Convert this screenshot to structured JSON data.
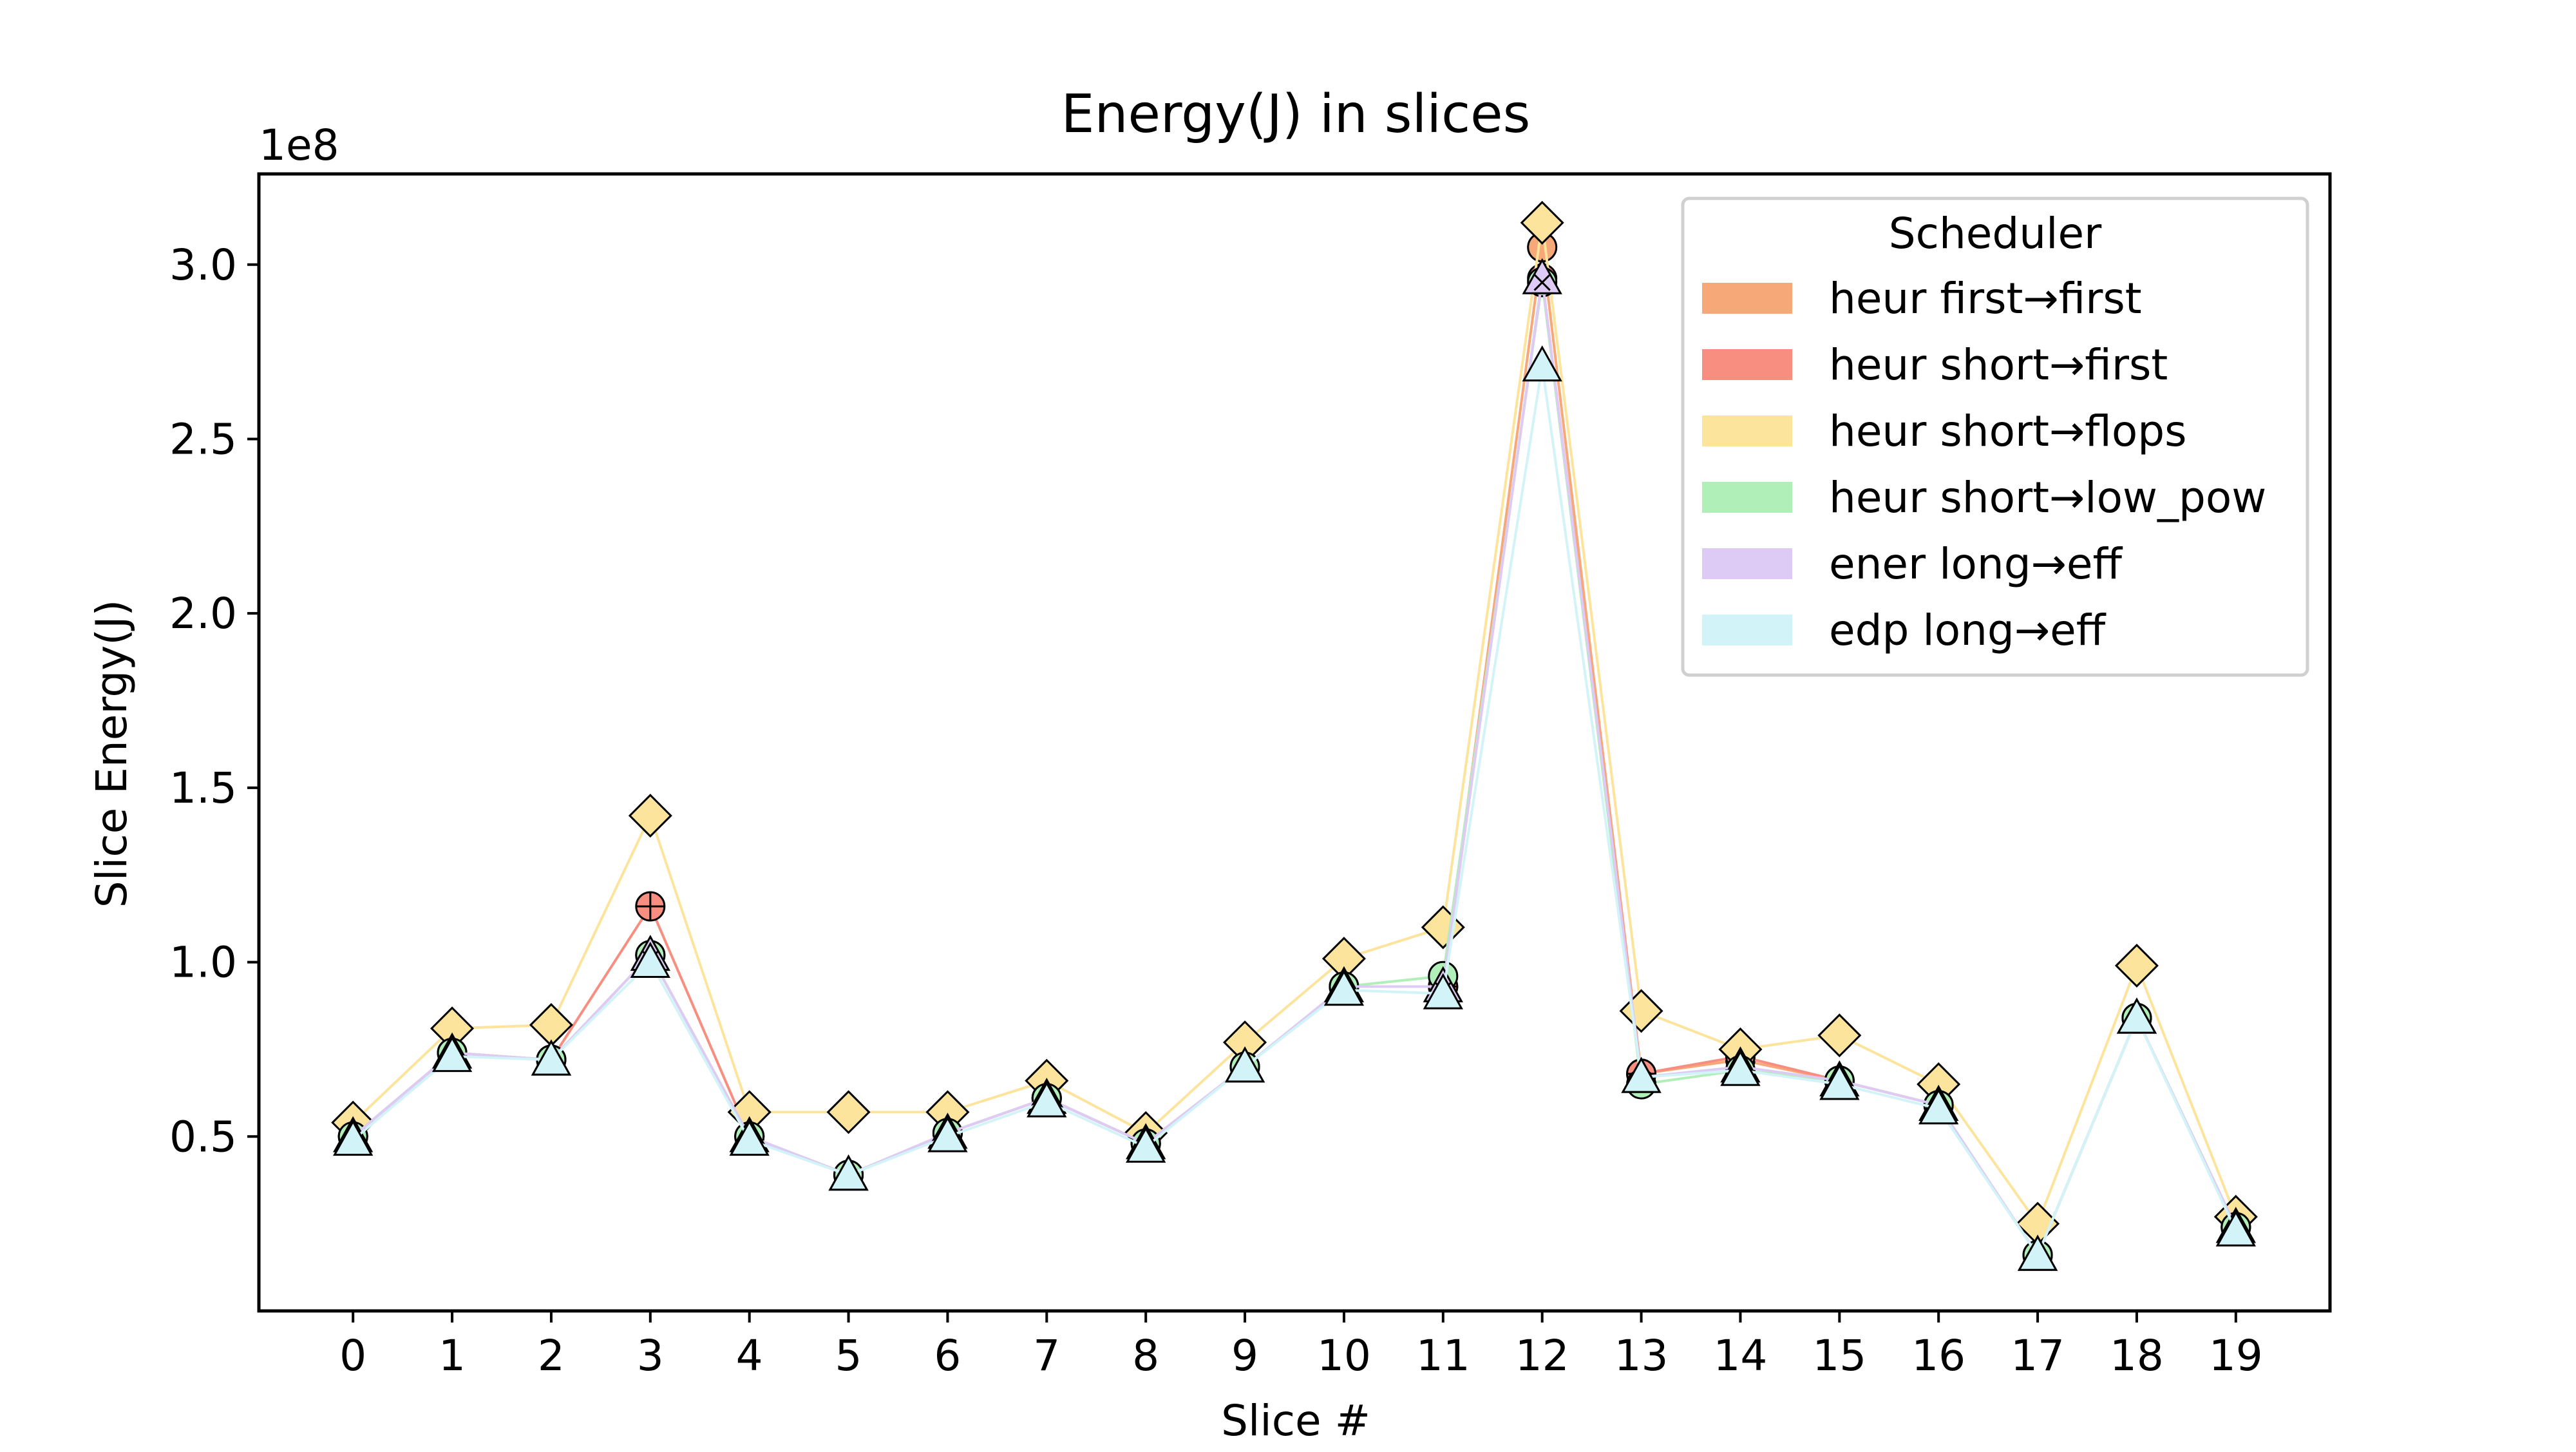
{
  "chart_data": {
    "type": "line",
    "title": "Energy(J) in slices",
    "xlabel": "Slice #",
    "ylabel": "Slice Energy(J)",
    "y_multiplier_label": "1e8",
    "x": [
      0,
      1,
      2,
      3,
      4,
      5,
      6,
      7,
      8,
      9,
      10,
      11,
      12,
      13,
      14,
      15,
      16,
      17,
      18,
      19
    ],
    "xlim": [
      -0.95,
      19.95
    ],
    "ylim": [
      0.0,
      3.26
    ],
    "yticks": [
      0.5,
      1.0,
      1.5,
      2.0,
      2.5,
      3.0
    ],
    "ytick_labels": [
      "0.5",
      "1.0",
      "1.5",
      "2.0",
      "2.5",
      "3.0"
    ],
    "grid": false,
    "legend": {
      "title": "Scheduler",
      "placement": "top-right"
    },
    "series": [
      {
        "name": "heur first→first",
        "color": "#f7a878",
        "marker": "circle",
        "values": [
          0.5,
          0.74,
          0.72,
          1.02,
          0.5,
          0.39,
          0.51,
          0.61,
          0.48,
          0.7,
          0.93,
          0.93,
          3.05,
          0.68,
          0.72,
          0.66,
          0.59,
          0.16,
          0.84,
          0.24
        ]
      },
      {
        "name": "heur short→first",
        "color": "#f78e80",
        "marker": "plus-circle",
        "values": [
          0.5,
          0.74,
          0.72,
          1.16,
          0.5,
          0.39,
          0.51,
          0.61,
          0.48,
          0.7,
          0.93,
          0.93,
          2.96,
          0.68,
          0.73,
          0.66,
          0.59,
          0.16,
          0.84,
          0.24
        ]
      },
      {
        "name": "heur short→flops",
        "color": "#fde49c",
        "marker": "diamond",
        "values": [
          0.54,
          0.81,
          0.82,
          1.42,
          0.57,
          0.57,
          0.57,
          0.66,
          0.51,
          0.77,
          1.01,
          1.1,
          3.12,
          0.86,
          0.75,
          0.79,
          0.65,
          0.25,
          0.99,
          0.27
        ]
      },
      {
        "name": "heur short→low_pow",
        "color": "#b1efb9",
        "marker": "circle",
        "values": [
          0.5,
          0.74,
          0.72,
          1.02,
          0.5,
          0.39,
          0.51,
          0.61,
          0.48,
          0.7,
          0.93,
          0.96,
          2.95,
          0.65,
          0.69,
          0.66,
          0.59,
          0.16,
          0.84,
          0.24
        ]
      },
      {
        "name": "ener long→eff",
        "color": "#decbf5",
        "marker": "x-triangle",
        "values": [
          0.5,
          0.74,
          0.72,
          1.02,
          0.5,
          0.39,
          0.51,
          0.61,
          0.48,
          0.7,
          0.93,
          0.93,
          2.96,
          0.67,
          0.7,
          0.66,
          0.59,
          0.16,
          0.84,
          0.24
        ]
      },
      {
        "name": "edp long→eff",
        "color": "#d2f3f7",
        "marker": "triangle",
        "values": [
          0.49,
          0.73,
          0.72,
          1.0,
          0.49,
          0.39,
          0.5,
          0.6,
          0.47,
          0.7,
          0.92,
          0.91,
          2.71,
          0.67,
          0.69,
          0.65,
          0.58,
          0.16,
          0.84,
          0.23
        ]
      }
    ]
  }
}
